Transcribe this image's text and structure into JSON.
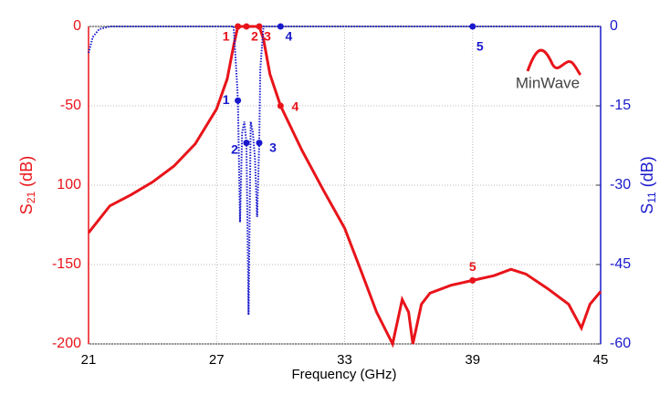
{
  "chart_data": {
    "type": "line",
    "x_label": "Frequency (GHz)",
    "y_label": {
      "text": "S",
      "sub": "21",
      "unit": "(dB)"
    },
    "y2_label": {
      "text": "S",
      "sub": "11",
      "unit": "(dB)"
    },
    "logo": "MinWave",
    "xlim": [
      21,
      45
    ],
    "xticks": [
      21,
      27,
      33,
      39,
      45
    ],
    "ylim": [
      -200,
      0
    ],
    "yticks": [
      0,
      -50,
      {
        "value": -100,
        "label": "100"
      },
      -150,
      -200
    ],
    "y2lim": [
      -60,
      0
    ],
    "y2ticks": [
      0,
      -15,
      -30,
      -45,
      -60
    ],
    "grid": true,
    "series": [
      {
        "name": "S21",
        "color": "#e8141a",
        "axis": "y",
        "x": [
          21,
          22,
          23,
          24,
          25,
          26,
          27,
          27.5,
          27.8,
          28,
          28.5,
          29,
          29.2,
          29.5,
          30,
          31,
          32,
          33,
          33.8,
          34.5,
          35.25,
          35.7,
          36.0,
          36.2,
          36.6,
          37,
          38,
          39,
          40,
          40.8,
          41.5,
          42.5,
          43.5,
          44.1,
          44.5,
          45
        ],
        "values": [
          -130,
          -113,
          -106,
          -98,
          -88,
          -74,
          -52,
          -33,
          -12,
          0,
          0,
          0,
          -8,
          -30,
          -50,
          -78,
          -103,
          -127,
          -155,
          -180,
          -200,
          -172,
          -180,
          -200,
          -175,
          -168,
          -163,
          -160,
          -157,
          -153,
          -156,
          -165,
          -175,
          -190,
          -175,
          -167
        ],
        "markers": {
          "x": [
            28,
            28.4,
            29,
            30,
            39
          ],
          "values": [
            0,
            0,
            0,
            -50,
            -160
          ],
          "labels": [
            "1",
            "2",
            "3",
            "4",
            "5"
          ]
        }
      },
      {
        "name": "S11",
        "color": "#1a1acc",
        "axis": "y2",
        "x": [
          21,
          21.2,
          21.5,
          22,
          27.8,
          27.95,
          28.0,
          28.1,
          28.2,
          28.3,
          28.4,
          28.5,
          28.6,
          28.7,
          28.8,
          28.9,
          29.0,
          29.05,
          29.2,
          45
        ],
        "values": [
          -5,
          -2,
          -0.5,
          0,
          0,
          -10,
          -14,
          -37,
          -20,
          -18,
          -22,
          -54.5,
          -18,
          -20,
          -25,
          -36,
          -22,
          -8,
          0,
          0
        ],
        "markers": {
          "x": [
            28,
            28.4,
            29,
            30,
            39
          ],
          "values": [
            -14,
            -22,
            -22,
            0,
            0
          ],
          "labels": [
            "1",
            "2",
            "3",
            "4",
            "5"
          ]
        }
      }
    ]
  }
}
